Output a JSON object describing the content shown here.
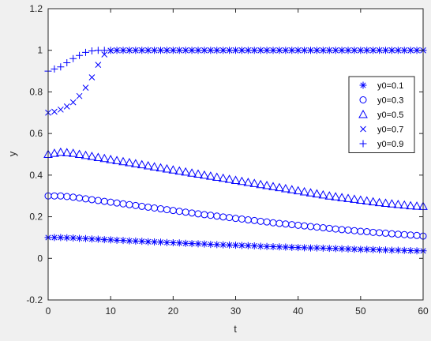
{
  "chart_data": {
    "type": "scatter",
    "xlabel": "t",
    "ylabel": "y",
    "xlim": [
      0,
      60
    ],
    "ylim": [
      -0.2,
      1.2
    ],
    "xticks": [
      0,
      10,
      20,
      30,
      40,
      50,
      60
    ],
    "xtick_labels": [
      "0",
      "10",
      "20",
      "30",
      "40",
      "50",
      "60"
    ],
    "yticks": [
      -0.2,
      0,
      0.2,
      0.4,
      0.6,
      0.8,
      1,
      1.2
    ],
    "ytick_labels": [
      "-0.2",
      "0",
      "0.2",
      "0.4",
      "0.6",
      "0.8",
      "1",
      "1.2"
    ],
    "grid": false,
    "legend_position": "right",
    "marker_color": "#0000ff",
    "x": [
      0,
      1,
      2,
      3,
      4,
      5,
      6,
      7,
      8,
      9,
      10,
      11,
      12,
      13,
      14,
      15,
      16,
      17,
      18,
      19,
      20,
      21,
      22,
      23,
      24,
      25,
      26,
      27,
      28,
      29,
      30,
      31,
      32,
      33,
      34,
      35,
      36,
      37,
      38,
      39,
      40,
      41,
      42,
      43,
      44,
      45,
      46,
      47,
      48,
      49,
      50,
      51,
      52,
      53,
      54,
      55,
      56,
      57,
      58,
      59,
      60
    ],
    "series": [
      {
        "name": "y0=0.1",
        "marker": "asterisk",
        "values": [
          0.1,
          0.1,
          0.1,
          0.099,
          0.098,
          0.096,
          0.095,
          0.093,
          0.092,
          0.09,
          0.089,
          0.087,
          0.086,
          0.084,
          0.083,
          0.082,
          0.08,
          0.079,
          0.078,
          0.076,
          0.075,
          0.074,
          0.072,
          0.071,
          0.07,
          0.069,
          0.067,
          0.066,
          0.065,
          0.064,
          0.063,
          0.062,
          0.061,
          0.06,
          0.058,
          0.057,
          0.056,
          0.055,
          0.054,
          0.053,
          0.052,
          0.051,
          0.05,
          0.05,
          0.049,
          0.048,
          0.047,
          0.046,
          0.045,
          0.044,
          0.043,
          0.043,
          0.042,
          0.041,
          0.04,
          0.039,
          0.039,
          0.038,
          0.037,
          0.036,
          0.036
        ]
      },
      {
        "name": "y0=0.3",
        "marker": "circle",
        "values": [
          0.3,
          0.3,
          0.3,
          0.297,
          0.294,
          0.29,
          0.286,
          0.282,
          0.278,
          0.274,
          0.27,
          0.266,
          0.262,
          0.258,
          0.254,
          0.25,
          0.246,
          0.242,
          0.238,
          0.234,
          0.23,
          0.226,
          0.222,
          0.218,
          0.214,
          0.21,
          0.207,
          0.203,
          0.199,
          0.196,
          0.192,
          0.189,
          0.185,
          0.182,
          0.178,
          0.175,
          0.171,
          0.168,
          0.165,
          0.162,
          0.159,
          0.156,
          0.153,
          0.15,
          0.147,
          0.144,
          0.141,
          0.138,
          0.136,
          0.133,
          0.13,
          0.128,
          0.125,
          0.123,
          0.121,
          0.118,
          0.116,
          0.114,
          0.112,
          0.11,
          0.107
        ]
      },
      {
        "name": "y0=0.5",
        "marker": "triangle",
        "values": [
          0.5,
          0.505,
          0.51,
          0.508,
          0.505,
          0.5,
          0.495,
          0.49,
          0.485,
          0.48,
          0.475,
          0.47,
          0.465,
          0.46,
          0.455,
          0.45,
          0.445,
          0.44,
          0.435,
          0.43,
          0.425,
          0.42,
          0.415,
          0.41,
          0.405,
          0.4,
          0.395,
          0.39,
          0.385,
          0.38,
          0.375,
          0.37,
          0.365,
          0.36,
          0.355,
          0.35,
          0.345,
          0.34,
          0.335,
          0.33,
          0.325,
          0.32,
          0.315,
          0.31,
          0.305,
          0.3,
          0.296,
          0.292,
          0.288,
          0.284,
          0.28,
          0.276,
          0.272,
          0.268,
          0.265,
          0.262,
          0.259,
          0.256,
          0.253,
          0.251,
          0.25
        ]
      },
      {
        "name": "y0=0.7",
        "marker": "x",
        "values": [
          0.7,
          0.705,
          0.715,
          0.73,
          0.75,
          0.78,
          0.82,
          0.87,
          0.93,
          0.98,
          0.998,
          1,
          1,
          1,
          1,
          1,
          1,
          1,
          1,
          1,
          1,
          1,
          1,
          1,
          1,
          1,
          1,
          1,
          1,
          1,
          1,
          1,
          1,
          1,
          1,
          1,
          1,
          1,
          1,
          1,
          1,
          1,
          1,
          1,
          1,
          1,
          1,
          1,
          1,
          1,
          1,
          1,
          1,
          1,
          1,
          1,
          1,
          1,
          1,
          1,
          1
        ]
      },
      {
        "name": "y0=0.9",
        "marker": "plus",
        "values": [
          0.9,
          0.91,
          0.92,
          0.94,
          0.96,
          0.975,
          0.99,
          0.997,
          1,
          1,
          1,
          1,
          1,
          1,
          1,
          1,
          1,
          1,
          1,
          1,
          1,
          1,
          1,
          1,
          1,
          1,
          1,
          1,
          1,
          1,
          1,
          1,
          1,
          1,
          1,
          1,
          1,
          1,
          1,
          1,
          1,
          1,
          1,
          1,
          1,
          1,
          1,
          1,
          1,
          1,
          1,
          1,
          1,
          1,
          1,
          1,
          1,
          1,
          1,
          1,
          1
        ]
      }
    ]
  }
}
